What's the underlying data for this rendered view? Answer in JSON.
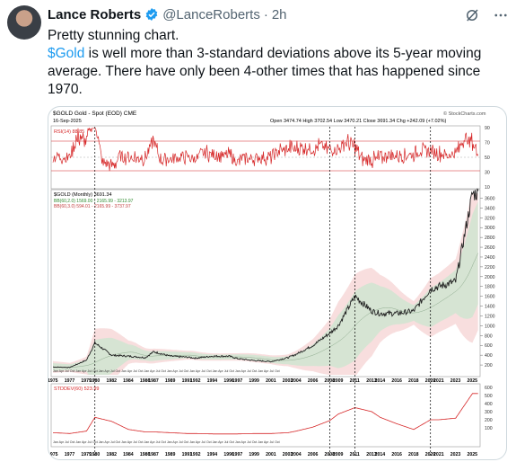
{
  "tweet": {
    "author_name": "Lance Roberts",
    "handle": "@LanceRoberts",
    "separator": "·",
    "time": "2h",
    "text_line1": "Pretty stunning chart.",
    "cashtag": "$Gold",
    "text_rest": " is well more than 3-standard deviations above its 5-year moving average. There have only been 4-other times that has happened since 1970."
  },
  "icons": {
    "verified": "verified-badge-icon",
    "grok": "grok-icon",
    "more": "more-options-icon"
  },
  "colors": {
    "verified": "#1d9bf0",
    "cashtag": "#1d9bf0",
    "rsi_line": "#d62728",
    "price": "#333333",
    "band_fill": "#d8e6d6",
    "band_outer": "#f6d6d6",
    "stddev_line": "#d62728"
  },
  "chart": {
    "header_left": "$GOLD Gold - Spot (EOD) CME",
    "date": "16-Sep-2025",
    "ohlc": "Open 3474.74  High 3702.54  Low 3470.21  Close 3691.34  Chg +242.09 (+7.02%)",
    "watermark": "© StockCharts.com",
    "rsi_label": "RSI(14) 88.85",
    "price_label": "$GOLD (Monthly) 3691.34",
    "bb1_label": "BB(60,2.0) 1569.00 - 2165.99 - 3213.97",
    "bb2_label": "BB(60,3.0) 594.01 - 2165.99 - 3737.97",
    "stddev_label": "STDDEV(60) 523.99",
    "rsi_ticks": [
      "90",
      "70",
      "50",
      "30",
      "10"
    ],
    "price_ticks": [
      "3600",
      "3400",
      "3200",
      "3000",
      "2800",
      "2600",
      "2400",
      "2200",
      "2000",
      "1800",
      "1600",
      "1400",
      "1200",
      "1000",
      "800",
      "600",
      "400",
      "200"
    ],
    "std_ticks": [
      "600",
      "500",
      "400",
      "300",
      "200",
      "100"
    ],
    "months_text": "Jan  Apr  Jul  Oct  Jan  Apr  Jul  Oct  Jan  Apr  Jul  Oct  Jan  Apr  Jul  Oct  Jan  Apr  Jul  Oct  Jan  Apr  Jul  Oct  Jan  Apr  Jul  Oct  Jan  Apr  Jul  Oct  Jan  Apr  Jul  Oct  Jan  Apr  Jul  Oct",
    "years": [
      "1975",
      "1977",
      "1979",
      "1980",
      "1982",
      "1984",
      "1986",
      "1987",
      "1989",
      "1991",
      "1992",
      "1994",
      "1996",
      "1997",
      "1999",
      "2001",
      "2003",
      "2004",
      "2006",
      "2008",
      "2009",
      "2011",
      "2013",
      "2014",
      "2016",
      "2018",
      "2020",
      "2021",
      "2023",
      "2025"
    ]
  },
  "chart_data": {
    "type": "line",
    "title": "$GOLD Gold - Spot (EOD) CME",
    "x": [
      1975,
      1977,
      1979,
      1980,
      1982,
      1984,
      1986,
      1987,
      1989,
      1991,
      1992,
      1994,
      1996,
      1997,
      1999,
      2001,
      2003,
      2004,
      2006,
      2008,
      2009,
      2011,
      2013,
      2014,
      2016,
      2018,
      2020,
      2021,
      2023,
      2025
    ],
    "series": [
      {
        "name": "$GOLD (Monthly) 3691.34",
        "values": [
          160,
          150,
          300,
          650,
          400,
          380,
          350,
          470,
          380,
          360,
          340,
          380,
          380,
          330,
          290,
          270,
          350,
          420,
          600,
          850,
          1000,
          1600,
          1300,
          1250,
          1250,
          1300,
          1750,
          1800,
          1900,
          3691
        ]
      },
      {
        "name": "STDDEV(60) 523.99",
        "values": [
          40,
          30,
          60,
          230,
          180,
          80,
          50,
          50,
          40,
          30,
          30,
          25,
          25,
          25,
          30,
          30,
          40,
          60,
          110,
          190,
          270,
          350,
          300,
          230,
          150,
          80,
          200,
          200,
          220,
          524
        ]
      }
    ],
    "ylim": [
      0,
      3700
    ],
    "rsi_ylim": [
      10,
      90
    ],
    "std_ylim": [
      0,
      600
    ],
    "highlighted_years": [
      1980,
      2008,
      2011,
      2020
    ]
  }
}
